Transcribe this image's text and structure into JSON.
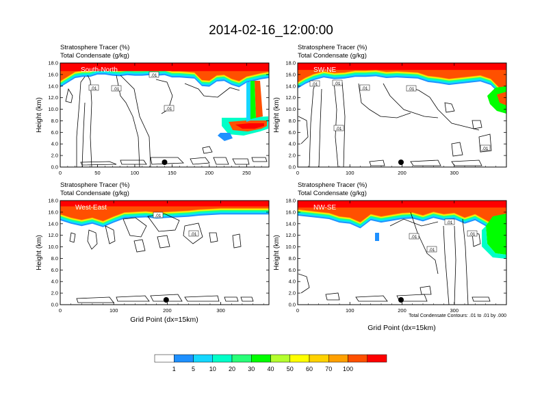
{
  "title": "2014-02-16_12:00:00",
  "colors": {
    "shading": [
      "#ffffff",
      "#1e90ff",
      "#14d7ff",
      "#00ffc8",
      "#28ff78",
      "#00ff00",
      "#b4ff2d",
      "#ffff00",
      "#ffd200",
      "#ffa000",
      "#ff5000",
      "#ff0000"
    ],
    "contour": "#000000"
  },
  "colorbar": {
    "labels": [
      "1",
      "5",
      "10",
      "20",
      "30",
      "40",
      "50",
      "60",
      "70",
      "100"
    ]
  },
  "footnote": "Total Condensate Contours: .01 to .01 by .000",
  "panels": [
    {
      "id": "south-north",
      "title_line1": "Stratosphere Tracer   (%)",
      "title_line2": "Total Condensate   (g/kg)",
      "label": "South-North",
      "xlabel": "",
      "ylabel": "Height (km)",
      "xticks": [
        "0",
        "50",
        "100",
        "150",
        "200",
        "250"
      ],
      "yticks": [
        "0.0",
        "2.0",
        "4.0",
        "6.0",
        "8.0",
        "10.0",
        "12.0",
        "14.0",
        "16.0",
        "18.0"
      ],
      "contour_labels": [
        ".01",
        ".01",
        ".01",
        ".01"
      ]
    },
    {
      "id": "sw-ne",
      "title_line1": "Stratosphere Tracer   (%)",
      "title_line2": "Total Condensate   (g/kg)",
      "label": "SW-NE",
      "xlabel": "",
      "ylabel": "Height (km)",
      "xticks": [
        "0",
        "100",
        "200",
        "300"
      ],
      "yticks": [
        "0.0",
        "2.0",
        "4.0",
        "6.0",
        "8.0",
        "10.0",
        "12.0",
        "14.0",
        "16.0",
        "18.0"
      ],
      "contour_labels": [
        ".01",
        ".01",
        ".01",
        ".01",
        ".01",
        ".01"
      ]
    },
    {
      "id": "west-east",
      "title_line1": "Stratosphere Tracer   (%)",
      "title_line2": "Total Condensate   (g/kg)",
      "label": "West-East",
      "xlabel": "Grid Point (dx=15km)",
      "ylabel": "Height (km)",
      "xticks": [
        "0",
        "100",
        "200",
        "300"
      ],
      "yticks": [
        "0.0",
        "2.0",
        "4.0",
        "6.0",
        "8.0",
        "10.0",
        "12.0",
        "14.0",
        "16.0",
        "18.0"
      ],
      "contour_labels": [
        ".01",
        ".01"
      ]
    },
    {
      "id": "nw-se",
      "title_line1": "Stratosphere Tracer   (%)",
      "title_line2": "Total Condensate   (g/kg)",
      "label": "NW-SE",
      "xlabel": "Grid Point (dx=15km)",
      "ylabel": "Height (km)",
      "xticks": [
        "0",
        "100",
        "200",
        "300"
      ],
      "yticks": [
        "0.0",
        "2.0",
        "4.0",
        "6.0",
        "8.0",
        "10.0",
        "12.0",
        "14.0",
        "16.0",
        "18.0"
      ],
      "contour_labels": [
        ".01",
        ".01",
        ".01",
        ".01"
      ]
    }
  ],
  "chart_data": [
    {
      "type": "heatmap",
      "title": "South-North",
      "ylabel": "Height (km)",
      "xlim": [
        0,
        280
      ],
      "ylim": [
        0,
        18
      ],
      "xticks": [
        0,
        50,
        100,
        150,
        200,
        250
      ],
      "yticks": [
        0,
        2,
        4,
        6,
        8,
        10,
        12,
        14,
        16,
        18
      ],
      "marker_x": 140,
      "tracer_top_km": 18,
      "red_layer_base_km": 16.6,
      "tracer_base_km": [
        [
          0,
          13.8
        ],
        [
          10,
          14.6
        ],
        [
          20,
          15.4
        ],
        [
          30,
          15.6
        ],
        [
          40,
          15.6
        ],
        [
          50,
          16.0
        ],
        [
          60,
          16.0
        ],
        [
          70,
          15.8
        ],
        [
          80,
          15.7
        ],
        [
          90,
          15.9
        ],
        [
          100,
          15.8
        ],
        [
          110,
          15.8
        ],
        [
          120,
          15.9
        ],
        [
          130,
          15.8
        ],
        [
          140,
          15.9
        ],
        [
          150,
          15.5
        ],
        [
          160,
          15.5
        ],
        [
          170,
          15.4
        ],
        [
          180,
          15.3
        ],
        [
          190,
          14.0
        ],
        [
          200,
          13.9
        ],
        [
          210,
          14.8
        ],
        [
          220,
          14.9
        ],
        [
          230,
          14.2
        ],
        [
          240,
          13.8
        ],
        [
          250,
          14.6
        ],
        [
          260,
          14.9
        ],
        [
          270,
          15.2
        ],
        [
          280,
          15.4
        ]
      ],
      "shaded_regions": [
        {
          "shape": "fold",
          "x": [
            215,
            280
          ],
          "y": [
            5.8,
            15.0
          ]
        }
      ],
      "contour_levels": [
        0.01
      ],
      "marker_label": ""
    },
    {
      "type": "heatmap",
      "title": "SW-NE",
      "ylabel": "Height (km)",
      "xlim": [
        0,
        400
      ],
      "ylim": [
        0,
        18
      ],
      "xticks": [
        0,
        100,
        200,
        300
      ],
      "yticks": [
        0,
        2,
        4,
        6,
        8,
        10,
        12,
        14,
        16,
        18
      ],
      "marker_x": 198,
      "tracer_top_km": 18,
      "red_layer_base_km": 16.8,
      "tracer_base_km": [
        [
          0,
          13.6
        ],
        [
          15,
          14.4
        ],
        [
          30,
          15.0
        ],
        [
          50,
          15.5
        ],
        [
          70,
          15.2
        ],
        [
          90,
          15.3
        ],
        [
          110,
          15.6
        ],
        [
          130,
          15.6
        ],
        [
          150,
          15.7
        ],
        [
          170,
          15.4
        ],
        [
          190,
          15.5
        ],
        [
          210,
          15.4
        ],
        [
          230,
          15.3
        ],
        [
          250,
          14.7
        ],
        [
          270,
          14.5
        ],
        [
          290,
          14.2
        ],
        [
          310,
          14.4
        ],
        [
          330,
          14.6
        ],
        [
          350,
          14.8
        ],
        [
          370,
          14.2
        ],
        [
          385,
          12.8
        ],
        [
          400,
          11.2
        ]
      ],
      "contour_levels": [
        0.01
      ]
    },
    {
      "type": "heatmap",
      "title": "West-East",
      "xlabel": "Grid Point (dx=15km)",
      "ylabel": "Height (km)",
      "xlim": [
        0,
        390
      ],
      "ylim": [
        0,
        18
      ],
      "xticks": [
        0,
        100,
        200,
        300
      ],
      "yticks": [
        0,
        2,
        4,
        6,
        8,
        10,
        12,
        14,
        16,
        18
      ],
      "marker_x": 198,
      "tracer_top_km": 18,
      "red_layer_base_km": 17.0,
      "tracer_base_km": [
        [
          0,
          14.6
        ],
        [
          20,
          14.0
        ],
        [
          40,
          13.6
        ],
        [
          60,
          14.0
        ],
        [
          80,
          13.4
        ],
        [
          100,
          14.2
        ],
        [
          120,
          14.9
        ],
        [
          140,
          15.0
        ],
        [
          160,
          15.1
        ],
        [
          180,
          14.9
        ],
        [
          200,
          15.0
        ],
        [
          220,
          15.1
        ],
        [
          240,
          15.2
        ],
        [
          260,
          15.4
        ],
        [
          280,
          15.5
        ],
        [
          300,
          15.6
        ],
        [
          320,
          15.6
        ],
        [
          340,
          15.6
        ],
        [
          360,
          15.6
        ],
        [
          390,
          15.6
        ]
      ],
      "contour_levels": [
        0.01
      ]
    },
    {
      "type": "heatmap",
      "title": "NW-SE",
      "xlabel": "Grid Point (dx=15km)",
      "ylabel": "Height (km)",
      "xlim": [
        0,
        400
      ],
      "ylim": [
        0,
        18
      ],
      "xticks": [
        0,
        100,
        200,
        300
      ],
      "yticks": [
        0,
        2,
        4,
        6,
        8,
        10,
        12,
        14,
        16,
        18
      ],
      "marker_x": 198,
      "tracer_top_km": 18,
      "red_layer_base_km": 16.8,
      "tracer_base_km": [
        [
          0,
          15.4
        ],
        [
          20,
          15.2
        ],
        [
          40,
          15.0
        ],
        [
          60,
          14.8
        ],
        [
          80,
          14.2
        ],
        [
          100,
          14.0
        ],
        [
          120,
          13.2
        ],
        [
          140,
          14.6
        ],
        [
          160,
          14.2
        ],
        [
          180,
          14.5
        ],
        [
          200,
          14.8
        ],
        [
          220,
          14.9
        ],
        [
          240,
          14.4
        ],
        [
          260,
          15.0
        ],
        [
          280,
          14.6
        ],
        [
          300,
          14.8
        ],
        [
          320,
          14.0
        ],
        [
          340,
          14.6
        ],
        [
          360,
          13.6
        ],
        [
          380,
          12.6
        ],
        [
          400,
          10.2
        ]
      ],
      "contour_levels": [
        0.01
      ]
    }
  ]
}
